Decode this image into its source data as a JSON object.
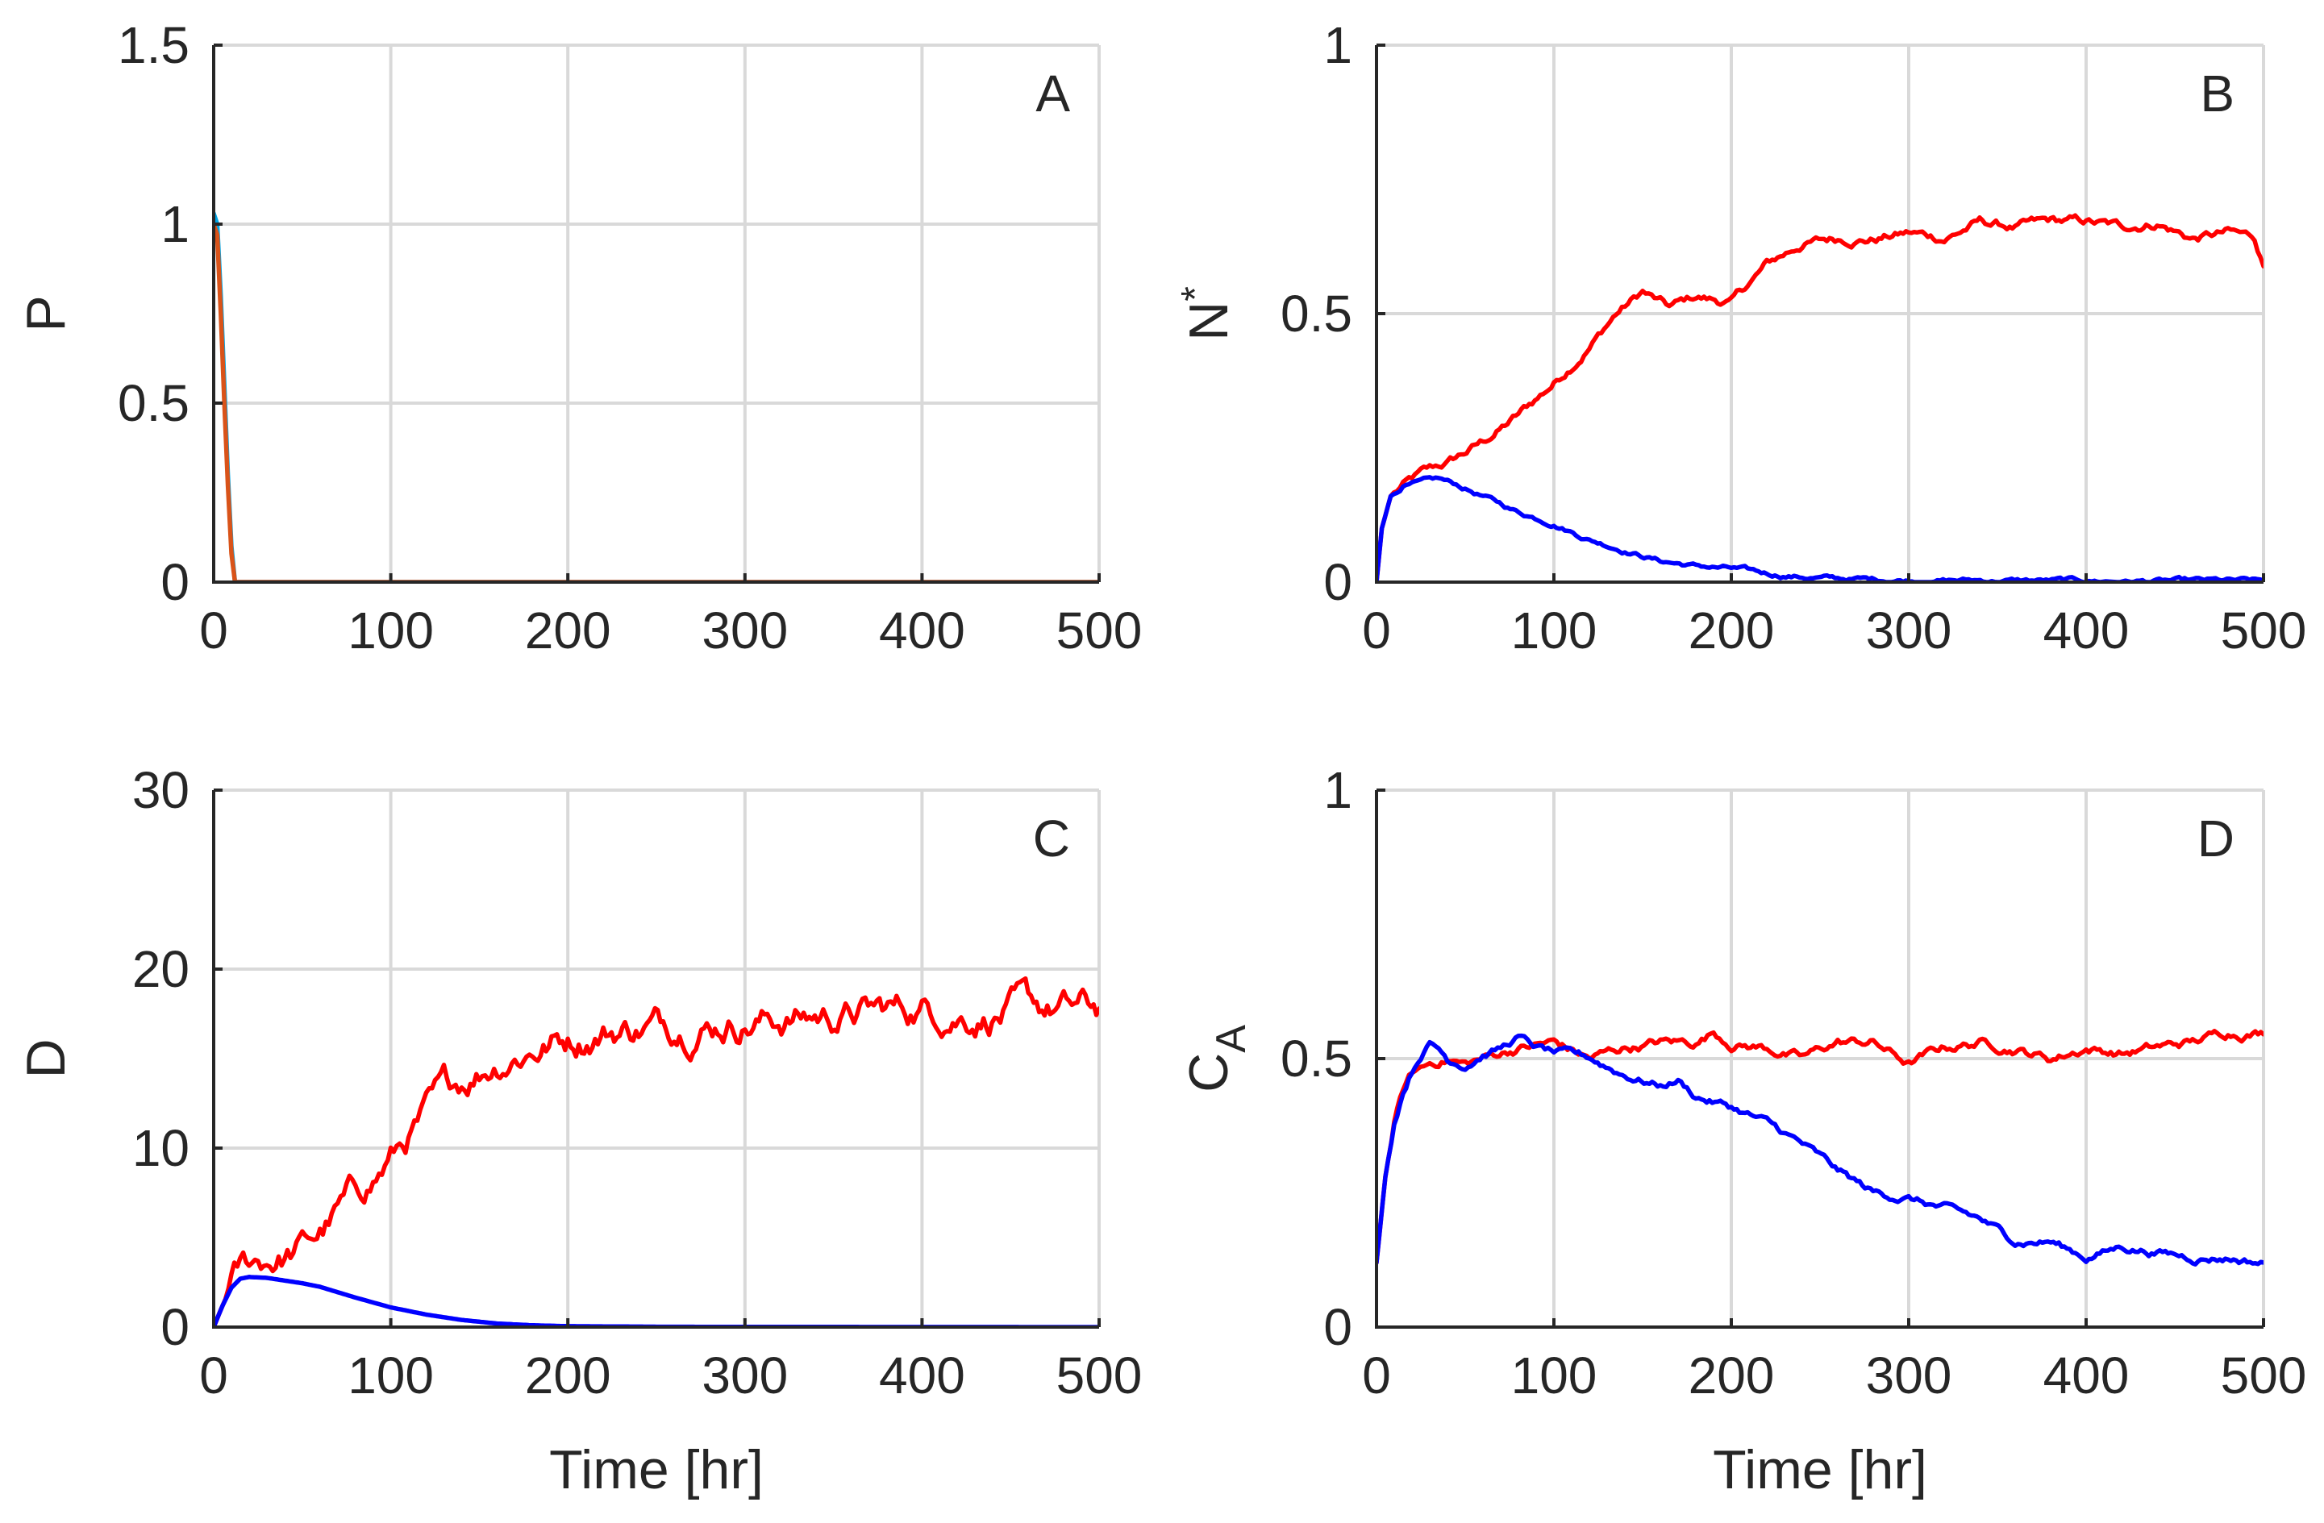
{
  "colors": {
    "red": "#ff0000",
    "blue": "#0000ff",
    "orange": "#d95319",
    "cyan": "#00a6e6",
    "axis": "#262626",
    "grid": "#d9d9d9"
  },
  "chart_data": [
    {
      "panel": "A",
      "type": "line",
      "xlabel": "",
      "ylabel": "P",
      "ylabel_sup": "",
      "ylabel_sub": "",
      "xlim": [
        0,
        500
      ],
      "ylim": [
        0,
        1.5
      ],
      "xticks": [
        0,
        100,
        200,
        300,
        400,
        500
      ],
      "yticks": [
        0,
        0.5,
        1,
        1.5
      ],
      "xtick_labels": [
        "0",
        "100",
        "200",
        "300",
        "400",
        "500"
      ],
      "ytick_labels": [
        "0",
        "0.5",
        "1",
        "1.5"
      ],
      "grid": true,
      "series": [
        {
          "name": "series-cyan",
          "color": "#00a6e6",
          "noise": 0,
          "x": [
            0,
            2,
            4,
            6,
            8,
            10,
            12,
            20,
            500
          ],
          "y": [
            1.03,
            1.0,
            0.8,
            0.55,
            0.3,
            0.1,
            0.0,
            0.0,
            0.0
          ]
        },
        {
          "name": "series-orange",
          "color": "#d95319",
          "noise": 0,
          "x": [
            0,
            2,
            4,
            6,
            8,
            10,
            12,
            20,
            500
          ],
          "y": [
            1.0,
            0.97,
            0.75,
            0.5,
            0.27,
            0.08,
            0.0,
            0.0,
            0.0
          ]
        }
      ]
    },
    {
      "panel": "B",
      "type": "line",
      "xlabel": "",
      "ylabel": "N",
      "ylabel_sup": "*",
      "ylabel_sub": "",
      "xlim": [
        0,
        500
      ],
      "ylim": [
        0,
        1
      ],
      "xticks": [
        0,
        100,
        200,
        300,
        400,
        500
      ],
      "yticks": [
        0,
        0.5,
        1
      ],
      "xtick_labels": [
        "0",
        "100",
        "200",
        "300",
        "400",
        "500"
      ],
      "ytick_labels": [
        "0",
        "0.5",
        "1"
      ],
      "grid": true,
      "series": [
        {
          "name": "series-red",
          "color": "#ff0000",
          "noise": 0.012,
          "x": [
            0,
            3,
            8,
            15,
            25,
            40,
            60,
            80,
            100,
            120,
            135,
            150,
            165,
            180,
            200,
            220,
            240,
            260,
            280,
            300,
            320,
            340,
            360,
            380,
            400,
            420,
            440,
            460,
            480,
            495,
            500
          ],
          "y": [
            0.0,
            0.1,
            0.16,
            0.18,
            0.2,
            0.22,
            0.26,
            0.31,
            0.37,
            0.44,
            0.5,
            0.54,
            0.51,
            0.53,
            0.52,
            0.59,
            0.63,
            0.64,
            0.64,
            0.65,
            0.64,
            0.67,
            0.66,
            0.67,
            0.67,
            0.66,
            0.67,
            0.64,
            0.65,
            0.64,
            0.59
          ]
        },
        {
          "name": "series-blue",
          "color": "#0000ff",
          "noise": 0.006,
          "x": [
            0,
            3,
            8,
            15,
            25,
            35,
            45,
            60,
            80,
            100,
            120,
            140,
            160,
            180,
            200,
            220,
            240,
            260,
            300,
            350,
            400,
            500
          ],
          "y": [
            0.0,
            0.1,
            0.16,
            0.18,
            0.185,
            0.19,
            0.18,
            0.16,
            0.13,
            0.11,
            0.08,
            0.06,
            0.04,
            0.03,
            0.025,
            0.015,
            0.01,
            0.006,
            0.004,
            0.003,
            0.002,
            0.001
          ]
        }
      ]
    },
    {
      "panel": "C",
      "type": "line",
      "xlabel": "Time [hr]",
      "ylabel": "D",
      "ylabel_sup": "",
      "ylabel_sub": "",
      "xlim": [
        0,
        500
      ],
      "ylim": [
        0,
        30
      ],
      "xticks": [
        0,
        100,
        200,
        300,
        400,
        500
      ],
      "yticks": [
        0,
        10,
        20,
        30
      ],
      "xtick_labels": [
        "0",
        "100",
        "200",
        "300",
        "400",
        "500"
      ],
      "ytick_labels": [
        "0",
        "10",
        "20",
        "30"
      ],
      "grid": true,
      "series": [
        {
          "name": "series-red",
          "color": "#ff0000",
          "noise": 0.04,
          "x": [
            0,
            5,
            10,
            15,
            20,
            30,
            40,
            50,
            60,
            70,
            80,
            90,
            100,
            110,
            120,
            130,
            140,
            150,
            160,
            170,
            180,
            200,
            220,
            240,
            260,
            280,
            300,
            330,
            360,
            400,
            430,
            460,
            480,
            500
          ],
          "y": [
            0.0,
            1.2,
            2.3,
            3.0,
            3.4,
            3.8,
            4.0,
            4.4,
            5.2,
            6.3,
            7.3,
            8.3,
            9.4,
            10.6,
            11.7,
            12.8,
            13.7,
            14.4,
            15.0,
            15.4,
            15.7,
            16.2,
            16.6,
            16.8,
            17.0,
            17.1,
            17.2,
            17.3,
            17.5,
            17.8,
            17.6,
            17.7,
            17.6,
            17.7
          ]
        },
        {
          "name": "series-blue",
          "color": "#0000ff",
          "noise": 0,
          "x": [
            0,
            5,
            10,
            15,
            20,
            30,
            40,
            50,
            60,
            70,
            80,
            100,
            120,
            140,
            160,
            180,
            200,
            250,
            300,
            500
          ],
          "y": [
            0.0,
            1.2,
            2.2,
            2.7,
            2.8,
            2.75,
            2.6,
            2.45,
            2.25,
            1.95,
            1.65,
            1.1,
            0.7,
            0.4,
            0.2,
            0.1,
            0.05,
            0.02,
            0.01,
            0.0
          ]
        }
      ]
    },
    {
      "panel": "D",
      "type": "line",
      "xlabel": "Time [hr]",
      "ylabel": "C",
      "ylabel_sup": "",
      "ylabel_sub": "A",
      "xlim": [
        0,
        500
      ],
      "ylim": [
        0,
        1
      ],
      "xticks": [
        0,
        100,
        200,
        300,
        400,
        500
      ],
      "yticks": [
        0,
        0.5,
        1
      ],
      "xtick_labels": [
        "0",
        "100",
        "200",
        "300",
        "400",
        "500"
      ],
      "ytick_labels": [
        "0",
        "0.5",
        "1"
      ],
      "grid": true,
      "series": [
        {
          "name": "series-red",
          "color": "#ff0000",
          "noise": 0.012,
          "x": [
            0,
            5,
            10,
            15,
            20,
            30,
            40,
            50,
            60,
            80,
            100,
            120,
            140,
            160,
            180,
            190,
            200,
            220,
            240,
            260,
            280,
            300,
            320,
            340,
            360,
            380,
            400,
            420,
            440,
            460,
            480,
            500
          ],
          "y": [
            0.12,
            0.28,
            0.38,
            0.44,
            0.47,
            0.49,
            0.5,
            0.49,
            0.5,
            0.52,
            0.53,
            0.5,
            0.52,
            0.53,
            0.53,
            0.55,
            0.53,
            0.52,
            0.5,
            0.53,
            0.53,
            0.49,
            0.52,
            0.53,
            0.52,
            0.5,
            0.52,
            0.51,
            0.52,
            0.53,
            0.55,
            0.55
          ]
        },
        {
          "name": "series-blue",
          "color": "#0000ff",
          "noise": 0.01,
          "x": [
            0,
            5,
            10,
            15,
            20,
            25,
            30,
            35,
            40,
            50,
            60,
            70,
            80,
            90,
            100,
            120,
            140,
            160,
            170,
            180,
            200,
            220,
            240,
            260,
            280,
            300,
            320,
            340,
            360,
            380,
            400,
            420,
            440,
            460,
            480,
            500
          ],
          "y": [
            0.12,
            0.28,
            0.38,
            0.44,
            0.48,
            0.51,
            0.53,
            0.52,
            0.5,
            0.49,
            0.51,
            0.52,
            0.54,
            0.52,
            0.51,
            0.5,
            0.47,
            0.45,
            0.46,
            0.43,
            0.41,
            0.38,
            0.34,
            0.29,
            0.25,
            0.24,
            0.22,
            0.2,
            0.16,
            0.16,
            0.13,
            0.15,
            0.14,
            0.13,
            0.13,
            0.12
          ]
        }
      ]
    }
  ]
}
